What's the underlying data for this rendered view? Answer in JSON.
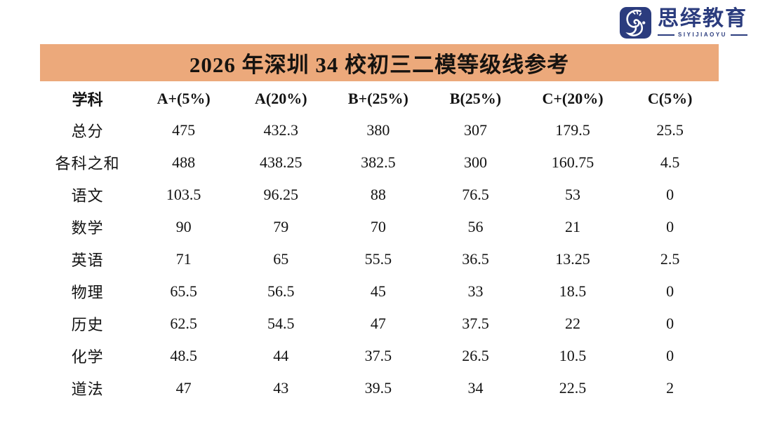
{
  "logo": {
    "brand": "思绎教育",
    "subtitle": "SIYIJIAOYU",
    "icon": "tiger-logo-icon",
    "color": "#2b3c7e"
  },
  "title_bar": {
    "text": "2026 年深圳 34 校初三二模等级线参考",
    "background": "#eca97b"
  },
  "chart_data": {
    "type": "table",
    "title": "2026 年深圳 34 校初三二模等级线参考",
    "columns": [
      "学科",
      "A+(5%)",
      "A(20%)",
      "B+(25%)",
      "B(25%)",
      "C+(20%)",
      "C(5%)"
    ],
    "rows": [
      {
        "label": "总分",
        "values": [
          "475",
          "432.3",
          "380",
          "307",
          "179.5",
          "25.5"
        ]
      },
      {
        "label": "各科之和",
        "values": [
          "488",
          "438.25",
          "382.5",
          "300",
          "160.75",
          "4.5"
        ]
      },
      {
        "label": "语文",
        "values": [
          "103.5",
          "96.25",
          "88",
          "76.5",
          "53",
          "0"
        ]
      },
      {
        "label": "数学",
        "values": [
          "90",
          "79",
          "70",
          "56",
          "21",
          "0"
        ]
      },
      {
        "label": "英语",
        "values": [
          "71",
          "65",
          "55.5",
          "36.5",
          "13.25",
          "2.5"
        ]
      },
      {
        "label": "物理",
        "values": [
          "65.5",
          "56.5",
          "45",
          "33",
          "18.5",
          "0"
        ]
      },
      {
        "label": "历史",
        "values": [
          "62.5",
          "54.5",
          "47",
          "37.5",
          "22",
          "0"
        ]
      },
      {
        "label": "化学",
        "values": [
          "48.5",
          "44",
          "37.5",
          "26.5",
          "10.5",
          "0"
        ]
      },
      {
        "label": "道法",
        "values": [
          "47",
          "43",
          "39.5",
          "34",
          "22.5",
          "2"
        ]
      }
    ]
  }
}
